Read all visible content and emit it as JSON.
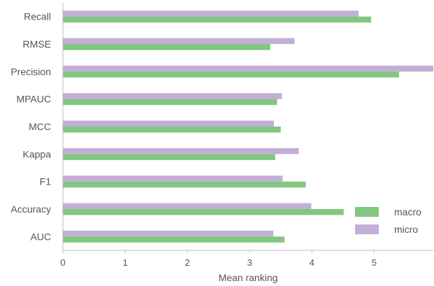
{
  "chart_data": {
    "type": "bar",
    "orientation": "horizontal",
    "categories": [
      "Recall",
      "RMSE",
      "Precision",
      "MPAUC",
      "MCC",
      "Kappa",
      "F1",
      "Accuracy",
      "AUC"
    ],
    "series": [
      {
        "name": "micro",
        "color": "#c3aed6",
        "values": [
          4.75,
          3.72,
          5.95,
          3.52,
          3.39,
          3.79,
          3.53,
          3.99,
          3.38
        ]
      },
      {
        "name": "macro",
        "color": "#80c77f",
        "values": [
          4.95,
          3.33,
          5.4,
          3.44,
          3.5,
          3.41,
          3.9,
          4.51,
          3.56
        ]
      }
    ],
    "xlabel": "Mean ranking",
    "ylabel": "",
    "xlim": [
      0,
      5.95
    ],
    "xticks": [
      0,
      1,
      2,
      3,
      4,
      5
    ],
    "grid": false,
    "legend": {
      "position": "lower-right",
      "entries": [
        {
          "label": "macro",
          "color": "#80c77f"
        },
        {
          "label": "micro",
          "color": "#c3aed6"
        }
      ]
    }
  }
}
